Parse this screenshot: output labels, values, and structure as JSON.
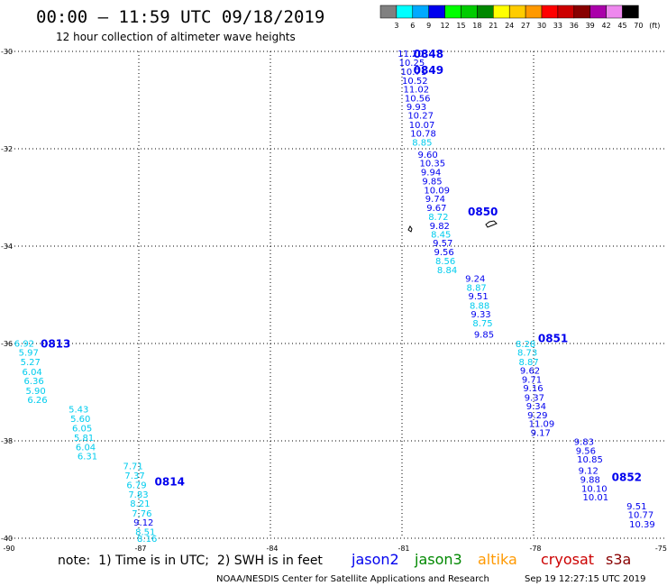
{
  "header": {
    "title": "00:00 – 11:59 UTC 09/18/2019",
    "subtitle": "12 hour collection of altimeter wave heights"
  },
  "colorbar": {
    "labels": [
      "3",
      "6",
      "9",
      "12",
      "15",
      "18",
      "21",
      "24",
      "27",
      "30",
      "33",
      "36",
      "39",
      "42",
      "45",
      "70",
      "(ft)"
    ],
    "colors": [
      "#808080",
      "#00ffff",
      "#00aaff",
      "#0000ee",
      "#00ff00",
      "#00cc00",
      "#008800",
      "#ffff00",
      "#ffcc00",
      "#ff9900",
      "#ff0000",
      "#cc0000",
      "#880000",
      "#aa00aa",
      "#ee88ee",
      "#000000"
    ]
  },
  "footer": {
    "note": "note:  1) Time is in UTC;  2) SWH is in feet",
    "credit": "NOAA/NESDIS Center for Satellite Applications and Research",
    "timestamp": "Sep 19 12:27:15 UTC 2019",
    "satellites": [
      {
        "name": "jason2",
        "color": "#0000ee"
      },
      {
        "name": "jason3",
        "color": "#008800"
      },
      {
        "name": "altika",
        "color": "#ff9900"
      },
      {
        "name": "cryosat",
        "color": "#cc0000"
      },
      {
        "name": "s3a",
        "color": "#880000"
      }
    ]
  },
  "chart_data": {
    "type": "scatter",
    "x_axis": {
      "range": [
        -90,
        -75
      ],
      "ticks": [
        -90,
        -87,
        -84,
        -81,
        -78,
        -75
      ]
    },
    "y_axis": {
      "range": [
        -40,
        -30
      ],
      "ticks": [
        -40,
        -38,
        -36,
        -34,
        -32,
        -30
      ]
    },
    "grid": true,
    "tracks": [
      {
        "satellite": "jason2",
        "times": [
          {
            "label": "0848",
            "lon": -80.74,
            "lat": -30.04
          },
          {
            "label": "0849",
            "lon": -80.74,
            "lat": -30.37
          },
          {
            "label": "0850",
            "lon": -79.5,
            "lat": -33.28
          },
          {
            "label": "0851",
            "lon": -77.9,
            "lat": -35.88
          },
          {
            "label": "0852",
            "lon": -76.22,
            "lat": -38.73
          }
        ],
        "points": [
          {
            "lon": -81.1,
            "lat": -30.04,
            "value": "11.20",
            "color": "#0000ee"
          },
          {
            "lon": -81.07,
            "lat": -30.22,
            "value": "10.25",
            "color": "#0000ee"
          },
          {
            "lon": -81.03,
            "lat": -30.41,
            "value": "10.71",
            "color": "#0000ee"
          },
          {
            "lon": -81.0,
            "lat": -30.59,
            "value": "10.52",
            "color": "#0000ee"
          },
          {
            "lon": -80.97,
            "lat": -30.77,
            "value": "11.02",
            "color": "#0000ee"
          },
          {
            "lon": -80.94,
            "lat": -30.95,
            "value": "10.56",
            "color": "#0000ee"
          },
          {
            "lon": -80.9,
            "lat": -31.13,
            "value": "9.93",
            "color": "#0000ee"
          },
          {
            "lon": -80.87,
            "lat": -31.31,
            "value": "10.27",
            "color": "#0000ee"
          },
          {
            "lon": -80.84,
            "lat": -31.5,
            "value": "10.07",
            "color": "#0000ee"
          },
          {
            "lon": -80.81,
            "lat": -31.68,
            "value": "10.78",
            "color": "#0000ee"
          },
          {
            "lon": -80.77,
            "lat": -31.86,
            "value": "8.85",
            "color": "#00ccee"
          },
          {
            "lon": -80.64,
            "lat": -32.11,
            "value": "9.60",
            "color": "#0000ee"
          },
          {
            "lon": -80.6,
            "lat": -32.29,
            "value": "10.35",
            "color": "#0000ee"
          },
          {
            "lon": -80.57,
            "lat": -32.47,
            "value": "9.94",
            "color": "#0000ee"
          },
          {
            "lon": -80.54,
            "lat": -32.66,
            "value": "9.85",
            "color": "#0000ee"
          },
          {
            "lon": -80.5,
            "lat": -32.84,
            "value": "10.09",
            "color": "#0000ee"
          },
          {
            "lon": -80.47,
            "lat": -33.02,
            "value": "9.74",
            "color": "#0000ee"
          },
          {
            "lon": -80.44,
            "lat": -33.2,
            "value": "9.67",
            "color": "#0000ee"
          },
          {
            "lon": -80.4,
            "lat": -33.39,
            "value": "8.72",
            "color": "#00ccee"
          },
          {
            "lon": -80.37,
            "lat": -33.57,
            "value": "9.82",
            "color": "#0000ee"
          },
          {
            "lon": -80.34,
            "lat": -33.75,
            "value": "8.45",
            "color": "#00ccee"
          },
          {
            "lon": -80.3,
            "lat": -33.93,
            "value": "9.57",
            "color": "#0000ee"
          },
          {
            "lon": -80.27,
            "lat": -34.11,
            "value": "9.56",
            "color": "#0000ee"
          },
          {
            "lon": -80.24,
            "lat": -34.3,
            "value": "8.56",
            "color": "#00ccee"
          },
          {
            "lon": -80.2,
            "lat": -34.48,
            "value": "8.84",
            "color": "#00ccee"
          },
          {
            "lon": -79.56,
            "lat": -34.66,
            "value": "9.24",
            "color": "#0000ee"
          },
          {
            "lon": -79.53,
            "lat": -34.84,
            "value": "8.87",
            "color": "#00ccee"
          },
          {
            "lon": -79.49,
            "lat": -35.02,
            "value": "9.51",
            "color": "#0000ee"
          },
          {
            "lon": -79.46,
            "lat": -35.21,
            "value": "8.88",
            "color": "#00ccee"
          },
          {
            "lon": -79.43,
            "lat": -35.39,
            "value": "9.33",
            "color": "#0000ee"
          },
          {
            "lon": -79.39,
            "lat": -35.57,
            "value": "8.75",
            "color": "#00ccee"
          },
          {
            "lon": -79.36,
            "lat": -35.81,
            "value": "9.85",
            "color": "#0000ee"
          },
          {
            "lon": -78.41,
            "lat": -36.0,
            "value": "8.28",
            "color": "#00ccee"
          },
          {
            "lon": -78.37,
            "lat": -36.18,
            "value": "8.73",
            "color": "#00ccee"
          },
          {
            "lon": -78.34,
            "lat": -36.37,
            "value": "8.87",
            "color": "#00ccee"
          },
          {
            "lon": -78.31,
            "lat": -36.55,
            "value": "9.62",
            "color": "#0000ee"
          },
          {
            "lon": -78.27,
            "lat": -36.73,
            "value": "9.71",
            "color": "#0000ee"
          },
          {
            "lon": -78.24,
            "lat": -36.91,
            "value": "9.16",
            "color": "#0000ee"
          },
          {
            "lon": -78.21,
            "lat": -37.1,
            "value": "9.37",
            "color": "#0000ee"
          },
          {
            "lon": -78.17,
            "lat": -37.28,
            "value": "9.34",
            "color": "#0000ee"
          },
          {
            "lon": -78.14,
            "lat": -37.46,
            "value": "9.29",
            "color": "#0000ee"
          },
          {
            "lon": -78.11,
            "lat": -37.64,
            "value": "11.09",
            "color": "#0000ee"
          },
          {
            "lon": -78.07,
            "lat": -37.82,
            "value": "9.17",
            "color": "#0000ee"
          },
          {
            "lon": -77.08,
            "lat": -38.01,
            "value": "9.83",
            "color": "#0000ee"
          },
          {
            "lon": -77.04,
            "lat": -38.19,
            "value": "9.56",
            "color": "#0000ee"
          },
          {
            "lon": -77.01,
            "lat": -38.37,
            "value": "10.85",
            "color": "#0000ee"
          },
          {
            "lon": -76.98,
            "lat": -38.6,
            "value": "9.12",
            "color": "#0000ee"
          },
          {
            "lon": -76.94,
            "lat": -38.79,
            "value": "9.88",
            "color": "#0000ee"
          },
          {
            "lon": -76.91,
            "lat": -38.97,
            "value": "10.10",
            "color": "#0000ee"
          },
          {
            "lon": -76.88,
            "lat": -39.15,
            "value": "10.01",
            "color": "#0000ee"
          },
          {
            "lon": -75.88,
            "lat": -39.33,
            "value": "9.51",
            "color": "#0000ee"
          },
          {
            "lon": -75.85,
            "lat": -39.51,
            "value": "10.77",
            "color": "#0000ee"
          },
          {
            "lon": -75.82,
            "lat": -39.7,
            "value": "10.39",
            "color": "#0000ee"
          }
        ]
      },
      {
        "satellite": "jason2",
        "times": [
          {
            "label": "0813",
            "lon": -89.24,
            "lat": -35.99
          },
          {
            "label": "0814",
            "lon": -86.64,
            "lat": -38.82
          }
        ],
        "points": [
          {
            "lon": -89.84,
            "lat": -35.99,
            "value": "6.92",
            "color": "#00ccee"
          },
          {
            "lon": -89.74,
            "lat": -36.18,
            "value": "5.97",
            "color": "#00ccee"
          },
          {
            "lon": -89.7,
            "lat": -36.37,
            "value": "5.27",
            "color": "#00ccee"
          },
          {
            "lon": -89.66,
            "lat": -36.57,
            "value": "6.04",
            "color": "#00ccee"
          },
          {
            "lon": -89.62,
            "lat": -36.76,
            "value": "6.36",
            "color": "#00ccee"
          },
          {
            "lon": -89.58,
            "lat": -36.96,
            "value": "5.90",
            "color": "#00ccee"
          },
          {
            "lon": -89.54,
            "lat": -37.15,
            "value": "6.26",
            "color": "#00ccee"
          },
          {
            "lon": -88.6,
            "lat": -37.34,
            "value": "5.43",
            "color": "#00ccee"
          },
          {
            "lon": -88.56,
            "lat": -37.54,
            "value": "5.60",
            "color": "#00ccee"
          },
          {
            "lon": -88.52,
            "lat": -37.73,
            "value": "6.05",
            "color": "#00ccee"
          },
          {
            "lon": -88.48,
            "lat": -37.93,
            "value": "5.81",
            "color": "#00ccee"
          },
          {
            "lon": -88.44,
            "lat": -38.12,
            "value": "6.04",
            "color": "#00ccee"
          },
          {
            "lon": -88.4,
            "lat": -38.31,
            "value": "6.31",
            "color": "#00ccee"
          },
          {
            "lon": -87.36,
            "lat": -38.51,
            "value": "7.71",
            "color": "#00ccee"
          },
          {
            "lon": -87.32,
            "lat": -38.7,
            "value": "7.37",
            "color": "#00ccee"
          },
          {
            "lon": -87.28,
            "lat": -38.9,
            "value": "6.79",
            "color": "#00ccee"
          },
          {
            "lon": -87.24,
            "lat": -39.09,
            "value": "7.83",
            "color": "#00ccee"
          },
          {
            "lon": -87.2,
            "lat": -39.28,
            "value": "8.21",
            "color": "#00ccee"
          },
          {
            "lon": -87.16,
            "lat": -39.48,
            "value": "7.76",
            "color": "#00ccee"
          },
          {
            "lon": -87.12,
            "lat": -39.67,
            "value": "9.12",
            "color": "#0000ee"
          },
          {
            "lon": -87.08,
            "lat": -39.86,
            "value": "8.51",
            "color": "#00ccee"
          },
          {
            "lon": -87.04,
            "lat": -40.0,
            "value": "8.16",
            "color": "#00ccee"
          }
        ]
      }
    ]
  }
}
